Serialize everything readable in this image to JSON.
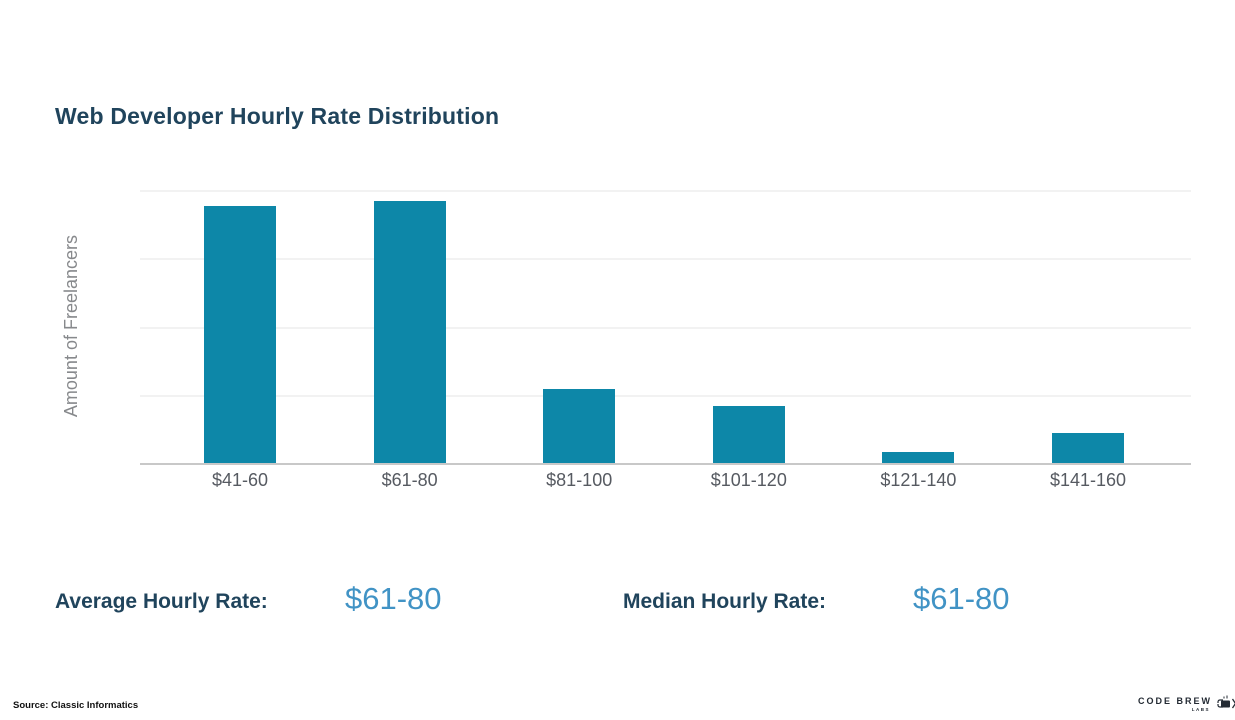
{
  "title": "Web Developer Hourly Rate Distribution",
  "chart_data": {
    "type": "bar",
    "title": "Web Developer Hourly Rate Distribution",
    "categories": [
      "$41-60",
      "$61-80",
      "$81-100",
      "$101-120",
      "$121-140",
      "$141-160"
    ],
    "values": [
      94,
      96,
      27,
      21,
      4,
      11
    ],
    "xlabel": "",
    "ylabel": "Amount of Freelancers",
    "ylim": [
      0,
      100
    ],
    "y_ticks_shown": false,
    "grid": "horizontal",
    "legend": "none",
    "bar_color": "#0d87a8"
  },
  "stats": {
    "average_label": "Average Hourly Rate:",
    "average_value": "$61-80",
    "median_label": "Median Hourly Rate:",
    "median_value": "$61-80"
  },
  "footer": {
    "source": "Source: Classic Informatics",
    "logo_text": "CODE BREW",
    "logo_sub": "LABS",
    "logo_icon": "beer-mug-icon"
  },
  "colors": {
    "bar": "#0d87a8",
    "title_text": "#20445c",
    "stat_value_text": "#4193c5",
    "axis_label_text": "#87898c",
    "tick_label_text": "#565a61",
    "gridline": "#f2f2f2",
    "baseline": "#c8c8c8",
    "background": "#ffffff"
  }
}
